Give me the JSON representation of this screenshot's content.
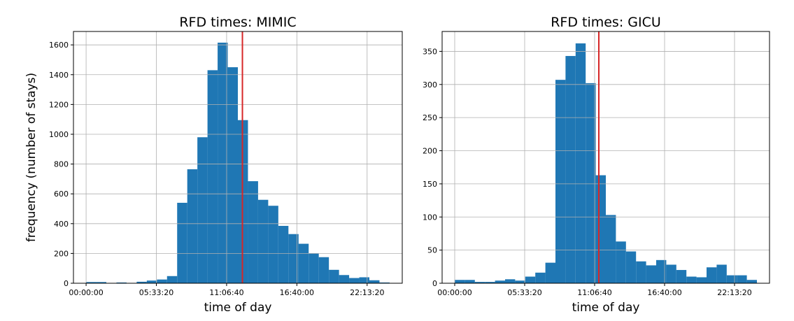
{
  "figure": {
    "ylabel": "frequency (number of stays)"
  },
  "chart_data": [
    {
      "type": "bar",
      "title": "RFD times: MIMIC",
      "xlabel": "time of day",
      "ylabel": "frequency (number of stays)",
      "x_unit": "seconds of day",
      "xlim": [
        -3600,
        90000
      ],
      "ylim": [
        0,
        1690
      ],
      "x_ticks": [
        {
          "value": 0,
          "label": "00:00:00"
        },
        {
          "value": 20000,
          "label": "05:33:20"
        },
        {
          "value": 40000,
          "label": "11:06:40"
        },
        {
          "value": 60000,
          "label": "16:40:00"
        },
        {
          "value": 80000,
          "label": "22:13:20"
        }
      ],
      "y_ticks": [
        {
          "value": 0,
          "label": "0"
        },
        {
          "value": 200,
          "label": "200"
        },
        {
          "value": 400,
          "label": "400"
        },
        {
          "value": 600,
          "label": "600"
        },
        {
          "value": 800,
          "label": "800"
        },
        {
          "value": 1000,
          "label": "1000"
        },
        {
          "value": 1200,
          "label": "1200"
        },
        {
          "value": 1400,
          "label": "1400"
        },
        {
          "value": 1600,
          "label": "1600"
        }
      ],
      "grid": true,
      "bar_color": "#1f77b4",
      "bins": {
        "start": 0,
        "width": 2880,
        "values": [
          8,
          8,
          2,
          5,
          2,
          10,
          18,
          25,
          48,
          540,
          765,
          980,
          1430,
          1615,
          1450,
          1095,
          685,
          560,
          520,
          385,
          330,
          265,
          200,
          175,
          90,
          55,
          35,
          40,
          20,
          5
        ]
      },
      "vline": {
        "x": 44500,
        "color": "#d62728"
      }
    },
    {
      "type": "bar",
      "title": "RFD times: GICU",
      "xlabel": "time of day",
      "ylabel": "",
      "x_unit": "seconds of day",
      "xlim": [
        -3600,
        90000
      ],
      "ylim": [
        0,
        380
      ],
      "x_ticks": [
        {
          "value": 0,
          "label": "00:00:00"
        },
        {
          "value": 20000,
          "label": "05:33:20"
        },
        {
          "value": 40000,
          "label": "11:06:40"
        },
        {
          "value": 60000,
          "label": "16:40:00"
        },
        {
          "value": 80000,
          "label": "22:13:20"
        }
      ],
      "y_ticks": [
        {
          "value": 0,
          "label": "0"
        },
        {
          "value": 50,
          "label": "50"
        },
        {
          "value": 100,
          "label": "100"
        },
        {
          "value": 150,
          "label": "150"
        },
        {
          "value": 200,
          "label": "200"
        },
        {
          "value": 250,
          "label": "250"
        },
        {
          "value": 300,
          "label": "300"
        },
        {
          "value": 350,
          "label": "350"
        }
      ],
      "grid": true,
      "bar_color": "#1f77b4",
      "bins": {
        "start": 0,
        "width": 2880,
        "values": [
          5,
          5,
          2,
          2,
          4,
          6,
          4,
          10,
          16,
          31,
          307,
          343,
          362,
          302,
          163,
          103,
          63,
          48,
          33,
          27,
          35,
          28,
          20,
          10,
          9,
          24,
          28,
          12,
          12,
          5
        ]
      },
      "vline": {
        "x": 41200,
        "color": "#d62728"
      }
    }
  ]
}
